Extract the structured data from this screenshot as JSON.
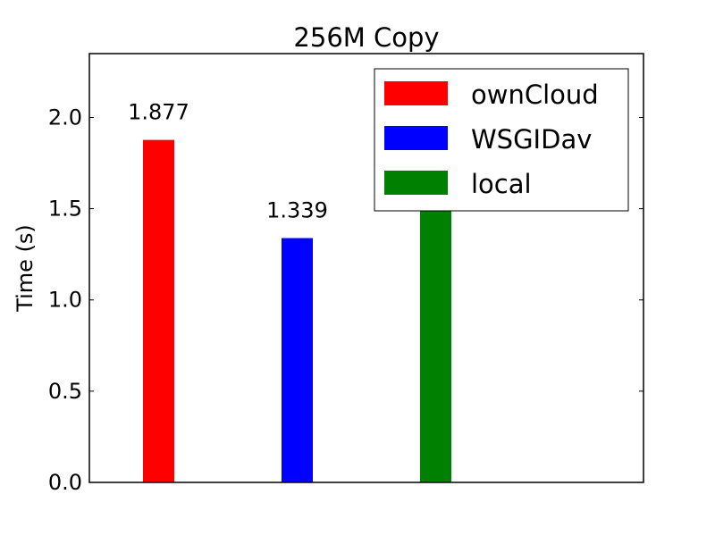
{
  "chart_data": {
    "type": "bar",
    "title": "256M Copy",
    "xlabel": "",
    "ylabel": "Time (s)",
    "ylim": [
      0,
      2.35
    ],
    "yticks": [
      "0.0",
      "0.5",
      "1.0",
      "1.5",
      "2.0"
    ],
    "grid": false,
    "legend_position": "top-right",
    "series": [
      {
        "name": "ownCloud",
        "value": 1.877,
        "label": "1.877",
        "color": "#ff0000"
      },
      {
        "name": "WSGIDav",
        "value": 1.339,
        "label": "1.339",
        "color": "#0000ff"
      },
      {
        "name": "local",
        "value": 1.52,
        "label": "",
        "color": "#008000"
      }
    ]
  }
}
